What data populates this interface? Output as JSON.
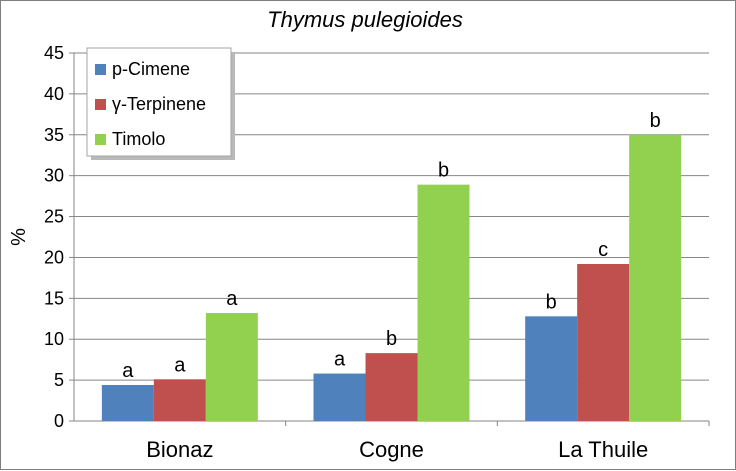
{
  "chart_data": {
    "type": "bar",
    "title": "Thymus pulegioides",
    "xlabel": "",
    "ylabel": "%",
    "ylim": [
      0,
      45
    ],
    "yticks": [
      0,
      5,
      10,
      15,
      20,
      25,
      30,
      35,
      40,
      45
    ],
    "grid": true,
    "legend_position": "top-left",
    "categories": [
      "Bionaz",
      "Cogne",
      "La Thuile"
    ],
    "series": [
      {
        "name": "p-Cimene",
        "color": "#4f81bd",
        "values": [
          4.4,
          5.8,
          12.8
        ],
        "labels": [
          "a",
          "a",
          "b"
        ]
      },
      {
        "name": "γ-Terpinene",
        "color": "#c0504d",
        "values": [
          5.1,
          8.3,
          19.2
        ],
        "labels": [
          "a",
          "b",
          "c"
        ]
      },
      {
        "name": "Timolo",
        "color": "#92d050",
        "values": [
          13.2,
          28.9,
          35.0
        ],
        "labels": [
          "a",
          "b",
          "b"
        ]
      }
    ]
  }
}
